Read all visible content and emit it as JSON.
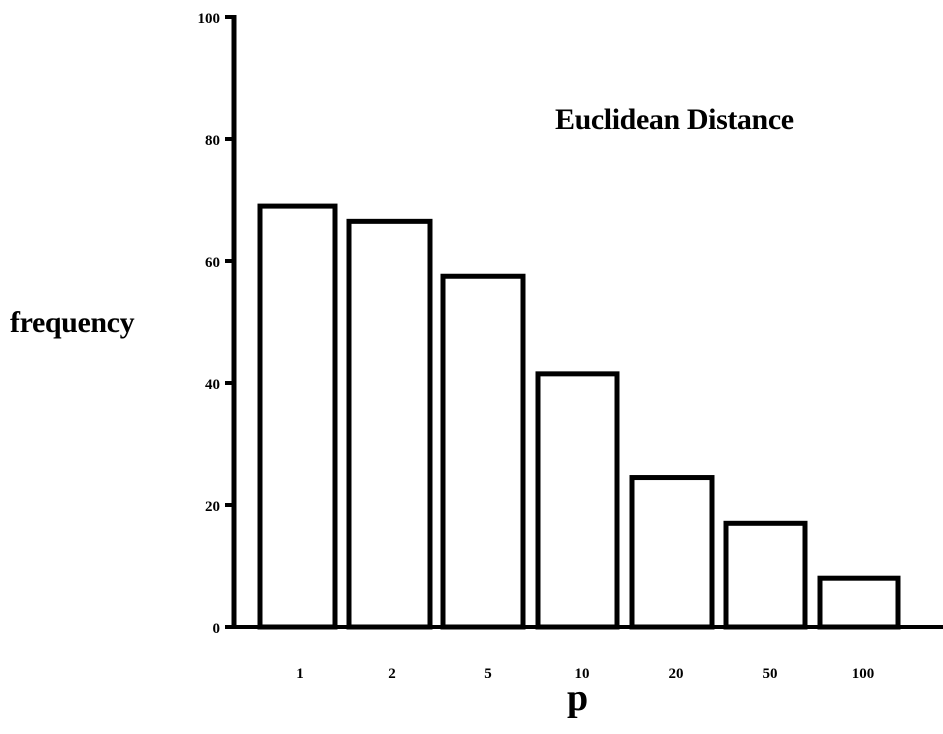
{
  "chart_data": {
    "type": "bar",
    "title": "Euclidean Distance",
    "xlabel": "p",
    "ylabel": "frequency",
    "categories": [
      "1",
      "2",
      "5",
      "10",
      "20",
      "50",
      "100"
    ],
    "values": [
      69,
      66.5,
      57.5,
      41.5,
      24.5,
      17,
      8
    ],
    "ylim": [
      0,
      100
    ],
    "yticks": [
      0,
      20,
      40,
      60,
      80,
      100
    ],
    "ytick_labels": [
      "0",
      "20",
      "40",
      "60",
      "80",
      "100"
    ],
    "grid": false,
    "legend": "none",
    "bar_fill": "#ffffff",
    "stroke_color": "#000000"
  }
}
